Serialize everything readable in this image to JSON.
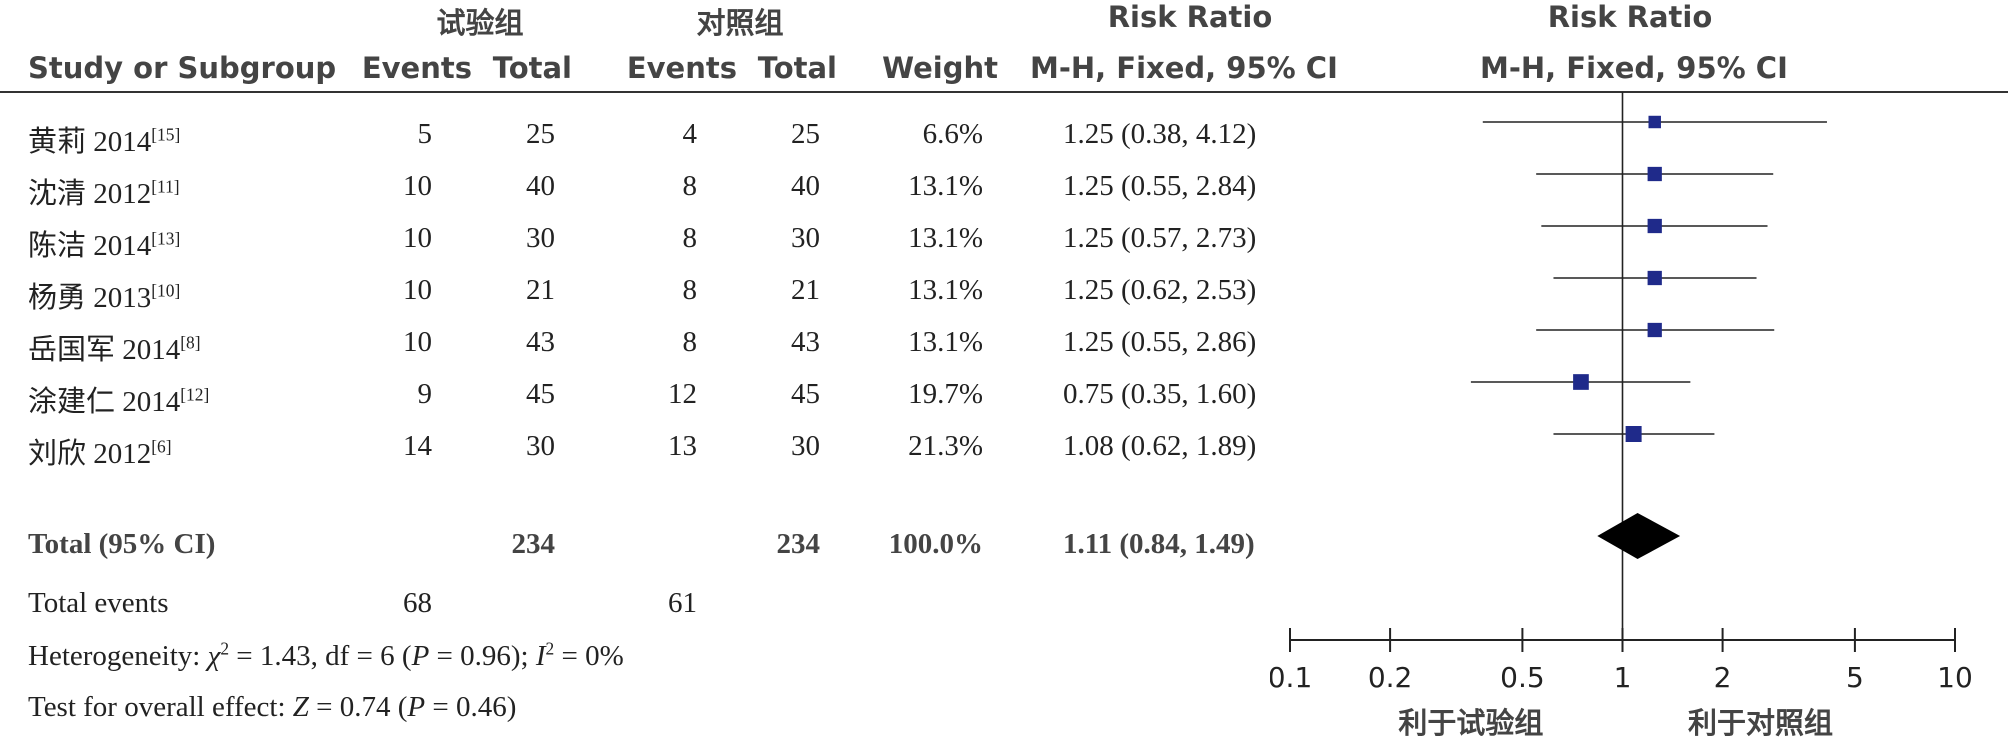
{
  "header": {
    "group1": "试验组",
    "group2": "对照组",
    "rr_title": "Risk Ratio",
    "rr_method": "M-H, Fixed, 95% CI",
    "plot_title": "Risk Ratio",
    "plot_method": "M-H, Fixed, 95% CI",
    "study": "Study or Subgroup",
    "events1": "Events",
    "total1": "Total",
    "events2": "Events",
    "total2": "Total",
    "weight": "Weight"
  },
  "studies": [
    {
      "name": "黄莉 2014",
      "ref": "[15]",
      "e1": "5",
      "t1": "25",
      "e2": "4",
      "t2": "25",
      "weight": "6.6%",
      "ci": "1.25 (0.38, 4.12)"
    },
    {
      "name": "沈清 2012",
      "ref": "[11]",
      "e1": "10",
      "t1": "40",
      "e2": "8",
      "t2": "40",
      "weight": "13.1%",
      "ci": "1.25 (0.55, 2.84)"
    },
    {
      "name": "陈洁 2014",
      "ref": "[13]",
      "e1": "10",
      "t1": "30",
      "e2": "8",
      "t2": "30",
      "weight": "13.1%",
      "ci": "1.25 (0.57, 2.73)"
    },
    {
      "name": "杨勇 2013",
      "ref": "[10]",
      "e1": "10",
      "t1": "21",
      "e2": "8",
      "t2": "21",
      "weight": "13.1%",
      "ci": "1.25 (0.62, 2.53)"
    },
    {
      "name": "岳国军 2014",
      "ref": "[8]",
      "e1": "10",
      "t1": "43",
      "e2": "8",
      "t2": "43",
      "weight": "13.1%",
      "ci": "1.25 (0.55, 2.86)"
    },
    {
      "name": "涂建仁 2014",
      "ref": "[12]",
      "e1": "9",
      "t1": "45",
      "e2": "12",
      "t2": "45",
      "weight": "19.7%",
      "ci": "0.75 (0.35, 1.60)"
    },
    {
      "name": "刘欣 2012",
      "ref": "[6]",
      "e1": "14",
      "t1": "30",
      "e2": "13",
      "t2": "30",
      "weight": "21.3%",
      "ci": "1.08 (0.62, 1.89)"
    }
  ],
  "total": {
    "label": "Total (95% CI)",
    "t1": "234",
    "t2": "234",
    "weight": "100.0%",
    "ci": "1.11 (0.84, 1.49)"
  },
  "total_events": {
    "label": "Total events",
    "e1": "68",
    "e2": "61"
  },
  "heterogeneity": {
    "prefix": "Heterogeneity: ",
    "chi_sym": "χ",
    "chi_rest": " = 1.43, df = 6 (",
    "p_sym": "P",
    "p_rest": " = 0.96); ",
    "i_sym": "I",
    "i_rest": " = 0%"
  },
  "overall": {
    "prefix": "Test for overall effect: ",
    "z_sym": "Z",
    "z_rest": " = 0.74 (",
    "p_sym": "P",
    "p_rest": " = 0.46)"
  },
  "chart_data": {
    "type": "forest",
    "xscale": "log",
    "xlim": [
      0.1,
      10
    ],
    "tick_labels": [
      "0.1",
      "0.2",
      "0.5",
      "1",
      "2",
      "5",
      "10"
    ],
    "null_value": 1,
    "favours_left": "利于试验组",
    "favours_right": "利于对照组",
    "rows": [
      {
        "rr": 1.25,
        "lo": 0.38,
        "hi": 4.12,
        "weight": 6.6
      },
      {
        "rr": 1.25,
        "lo": 0.55,
        "hi": 2.84,
        "weight": 13.1
      },
      {
        "rr": 1.25,
        "lo": 0.57,
        "hi": 2.73,
        "weight": 13.1
      },
      {
        "rr": 1.25,
        "lo": 0.62,
        "hi": 2.53,
        "weight": 13.1
      },
      {
        "rr": 1.25,
        "lo": 0.55,
        "hi": 2.86,
        "weight": 13.1
      },
      {
        "rr": 0.75,
        "lo": 0.35,
        "hi": 1.6,
        "weight": 19.7
      },
      {
        "rr": 1.08,
        "lo": 0.62,
        "hi": 1.89,
        "weight": 21.3
      }
    ],
    "pooled": {
      "rr": 1.11,
      "lo": 0.84,
      "hi": 1.49
    },
    "colors": {
      "square": "#1f2a8a",
      "line": "#222222",
      "diamond": "#000000"
    }
  }
}
